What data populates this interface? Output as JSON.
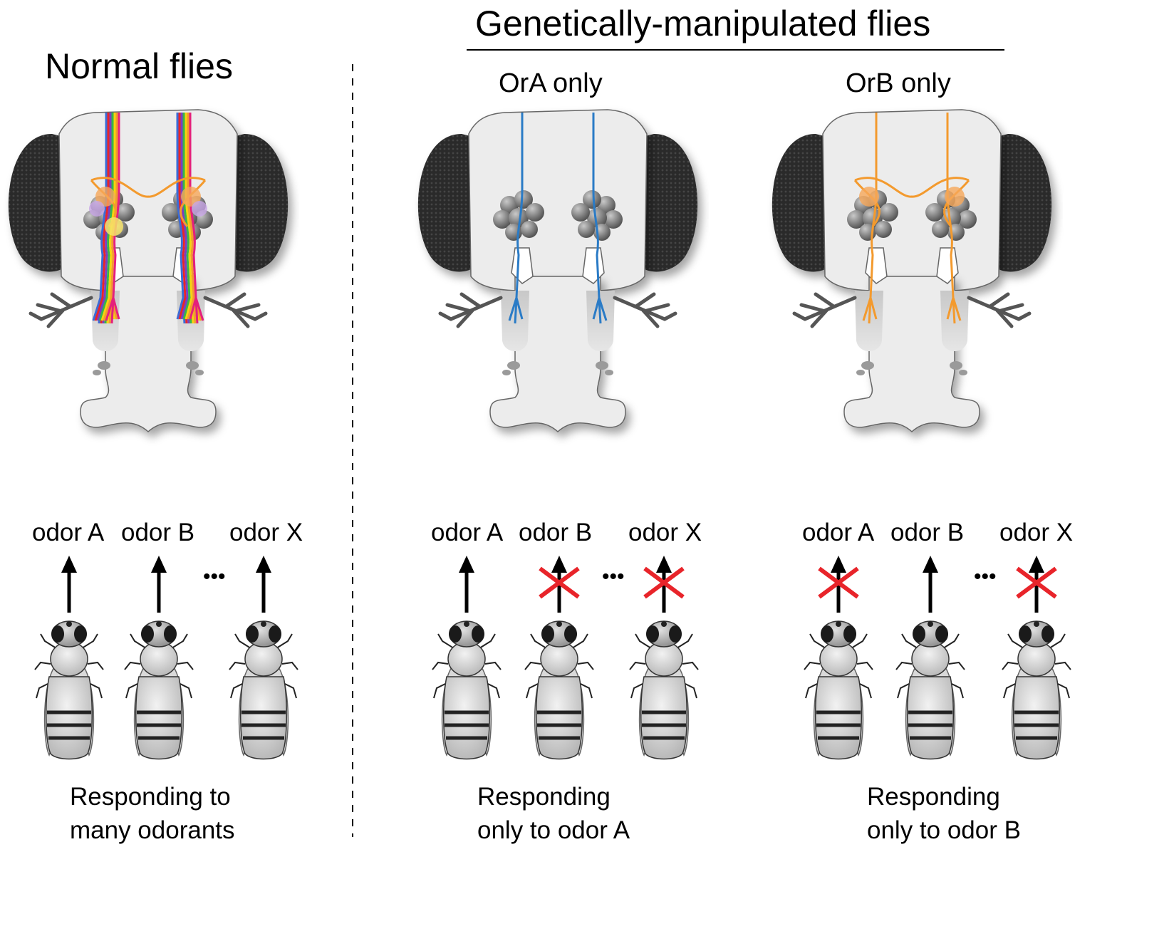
{
  "header": {
    "normal_title": "Normal flies",
    "genetic_title": "Genetically-manipulated flies"
  },
  "panels": [
    {
      "subtitle": "",
      "axon_colors": [
        "#3b6bd6",
        "#e8242a",
        "#7a3fc2",
        "#38b54a",
        "#f6d30f",
        "#f39a2e",
        "#e4207c"
      ],
      "odors": [
        {
          "label": "odor A",
          "response": true
        },
        {
          "label": "odor B",
          "response": true
        },
        {
          "label": "odor X",
          "response": true
        }
      ],
      "ellipsis": "•••",
      "caption": [
        "Responding to",
        "many odorants"
      ]
    },
    {
      "subtitle": "OrA only",
      "axon_colors": [
        "#2a7bc6"
      ],
      "odors": [
        {
          "label": "odor A",
          "response": true
        },
        {
          "label": "odor B",
          "response": false
        },
        {
          "label": "odor X",
          "response": false
        }
      ],
      "ellipsis": "•••",
      "caption": [
        "Responding",
        "only to odor A"
      ]
    },
    {
      "subtitle": "OrB only",
      "axon_colors": [
        "#f39a2e"
      ],
      "odors": [
        {
          "label": "odor A",
          "response": false
        },
        {
          "label": "odor B",
          "response": true
        },
        {
          "label": "odor X",
          "response": false
        }
      ],
      "ellipsis": "•••",
      "caption": [
        "Responding",
        "only to odor B"
      ]
    }
  ],
  "colors": {
    "cross": "#e8242a",
    "eye": "#2b2b2b",
    "brain": "#ececec",
    "outline": "#555555"
  }
}
